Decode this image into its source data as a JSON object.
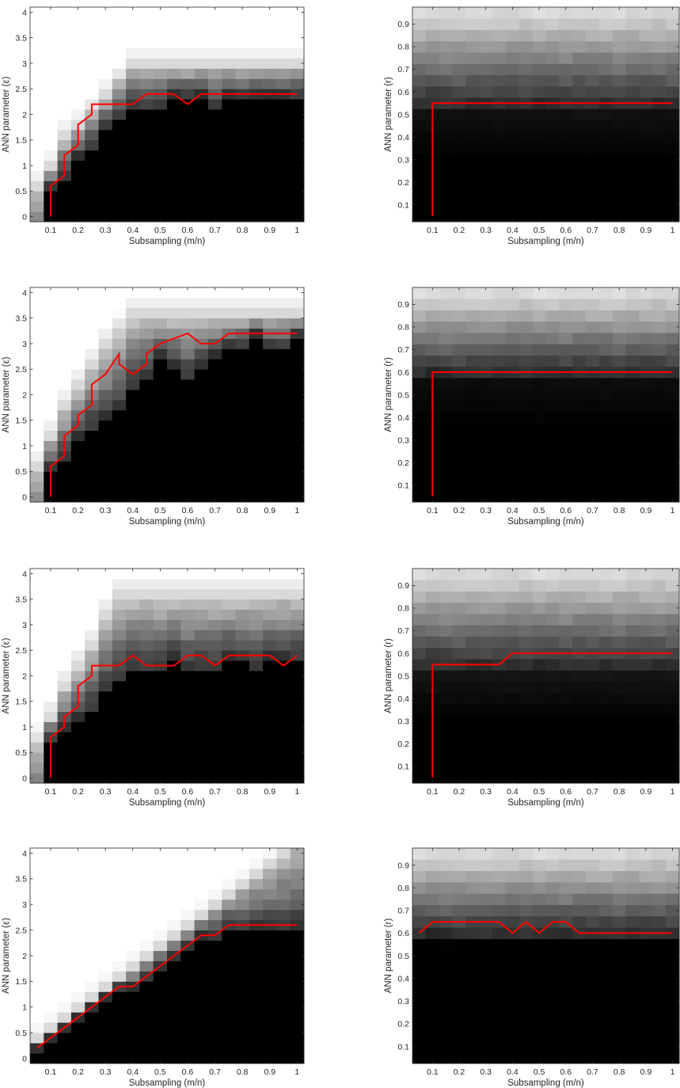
{
  "chart_data": [
    {
      "type": "heatmap",
      "panel": "row1-left",
      "xlabel": "Subsampling (m/n)",
      "ylabel": "ANN parameter (ε)",
      "x_ticks": [
        0.1,
        0.2,
        0.3,
        0.4,
        0.5,
        0.6,
        0.7,
        0.8,
        0.9,
        1
      ],
      "y_ticks": [
        0,
        0.5,
        1,
        1.5,
        2,
        2.5,
        3,
        3.5,
        4
      ],
      "xlim": [
        0.025,
        1.025
      ],
      "ylim": [
        -0.1,
        4.1
      ],
      "colormap": "gray",
      "boundary": {
        "x": [
          0.1,
          0.1,
          0.15,
          0.15,
          0.2,
          0.2,
          0.25,
          0.25,
          0.3,
          0.4,
          0.45,
          0.55,
          0.6,
          0.65,
          1.0
        ],
        "y": [
          0.0,
          0.6,
          0.8,
          1.2,
          1.4,
          1.8,
          2.0,
          2.2,
          2.2,
          2.2,
          2.4,
          2.4,
          2.2,
          2.4,
          2.4
        ]
      },
      "surface": {
        "model": "eps",
        "lower": [
          -1,
          0.6,
          0.8,
          1.2,
          1.4,
          1.8,
          2.0,
          2.2,
          2.2,
          2.2,
          2.4,
          2.4,
          2.4,
          2.2,
          2.4,
          2.4,
          2.4,
          2.4,
          2.4,
          2.4
        ],
        "upper": [
          0.6,
          1.0,
          1.6,
          1.8,
          2.1,
          2.4,
          2.7,
          3.0,
          3.0,
          3.0,
          3.0,
          3.0,
          3.0,
          3.0,
          3.0,
          3.0,
          3.0,
          3.0,
          3.0,
          3.0
        ],
        "band": 0.3,
        "level": 0.58
      }
    },
    {
      "type": "heatmap",
      "panel": "row1-right",
      "xlabel": "Subsampling (m/n)",
      "ylabel": "ANN parameter (r)",
      "x_ticks": [
        0.1,
        0.2,
        0.3,
        0.4,
        0.5,
        0.6,
        0.7,
        0.8,
        0.9,
        1
      ],
      "y_ticks": [
        0.1,
        0.2,
        0.3,
        0.4,
        0.5,
        0.6,
        0.7,
        0.8,
        0.9
      ],
      "xlim": [
        0.025,
        1.025
      ],
      "ylim": [
        0.025,
        0.975
      ],
      "colormap": "gray",
      "boundary": {
        "x": [
          0.1,
          0.1,
          1.0
        ],
        "y": [
          0.05,
          0.55,
          0.55
        ]
      },
      "surface": {
        "model": "r",
        "step": 0.55,
        "low": 0.08,
        "high": 0.85
      }
    },
    {
      "type": "heatmap",
      "panel": "row2-left",
      "xlabel": "Subsampling (m/n)",
      "ylabel": "ANN parameter (ε)",
      "x_ticks": [
        0.1,
        0.2,
        0.3,
        0.4,
        0.5,
        0.6,
        0.7,
        0.8,
        0.9,
        1
      ],
      "y_ticks": [
        0,
        0.5,
        1,
        1.5,
        2,
        2.5,
        3,
        3.5,
        4
      ],
      "xlim": [
        0.025,
        1.025
      ],
      "ylim": [
        -0.1,
        4.1
      ],
      "colormap": "gray",
      "boundary": {
        "x": [
          0.1,
          0.1,
          0.15,
          0.15,
          0.2,
          0.2,
          0.25,
          0.25,
          0.3,
          0.35,
          0.35,
          0.4,
          0.45,
          0.45,
          0.5,
          0.6,
          0.65,
          0.7,
          0.75,
          1.0
        ],
        "y": [
          0.0,
          0.6,
          0.8,
          1.2,
          1.4,
          1.6,
          1.8,
          2.2,
          2.4,
          2.8,
          2.6,
          2.4,
          2.6,
          2.8,
          3.0,
          3.2,
          3.0,
          3.0,
          3.2,
          3.2
        ]
      },
      "surface": {
        "model": "eps",
        "lower": [
          -1,
          0.6,
          0.8,
          1.2,
          1.4,
          1.6,
          1.8,
          2.2,
          2.4,
          2.8,
          2.6,
          2.4,
          2.6,
          2.8,
          3.0,
          3.0,
          3.2,
          3.0,
          3.0,
          3.2
        ],
        "upper": [
          0.6,
          1.2,
          1.8,
          2.2,
          2.6,
          3.0,
          3.3,
          3.6,
          3.6,
          3.6,
          3.6,
          3.6,
          3.6,
          3.6,
          3.6,
          3.6,
          3.6,
          3.6,
          3.6,
          3.6
        ],
        "band": 0.35,
        "level": 0.6
      }
    },
    {
      "type": "heatmap",
      "panel": "row2-right",
      "xlabel": "Subsampling (m/n)",
      "ylabel": "ANN parameter (r)",
      "x_ticks": [
        0.1,
        0.2,
        0.3,
        0.4,
        0.5,
        0.6,
        0.7,
        0.8,
        0.9,
        1
      ],
      "y_ticks": [
        0.1,
        0.2,
        0.3,
        0.4,
        0.5,
        0.6,
        0.7,
        0.8,
        0.9
      ],
      "xlim": [
        0.025,
        1.025
      ],
      "ylim": [
        0.025,
        0.975
      ],
      "colormap": "gray",
      "boundary": {
        "x": [
          0.1,
          0.1,
          1.0
        ],
        "y": [
          0.05,
          0.6,
          0.6
        ]
      },
      "surface": {
        "model": "r",
        "step": 0.6,
        "low": 0.06,
        "high": 0.86
      }
    },
    {
      "type": "heatmap",
      "panel": "row3-left",
      "xlabel": "Subsampling (m/n)",
      "ylabel": "ANN parameter (ε)",
      "x_ticks": [
        0.1,
        0.2,
        0.3,
        0.4,
        0.5,
        0.6,
        0.7,
        0.8,
        0.9,
        1
      ],
      "y_ticks": [
        0,
        0.5,
        1,
        1.5,
        2,
        2.5,
        3,
        3.5,
        4
      ],
      "xlim": [
        0.025,
        1.025
      ],
      "ylim": [
        -0.1,
        4.1
      ],
      "colormap": "gray",
      "boundary": {
        "x": [
          0.1,
          0.1,
          0.15,
          0.15,
          0.2,
          0.2,
          0.25,
          0.25,
          0.3,
          0.35,
          0.4,
          0.45,
          0.5,
          0.55,
          0.6,
          0.65,
          0.7,
          0.75,
          0.8,
          0.9,
          0.95,
          1.0
        ],
        "y": [
          0.0,
          0.8,
          1.0,
          1.2,
          1.4,
          1.8,
          2.0,
          2.2,
          2.2,
          2.2,
          2.4,
          2.2,
          2.2,
          2.2,
          2.4,
          2.4,
          2.2,
          2.4,
          2.4,
          2.4,
          2.2,
          2.4
        ]
      },
      "surface": {
        "model": "eps",
        "lower": [
          -1,
          0.8,
          1.0,
          1.2,
          1.4,
          1.8,
          2.0,
          2.2,
          2.2,
          2.2,
          2.4,
          2.2,
          2.2,
          2.2,
          2.4,
          2.4,
          2.2,
          2.4,
          2.4,
          2.4
        ],
        "upper": [
          0.7,
          1.2,
          1.8,
          2.2,
          2.6,
          3.2,
          3.6,
          3.6,
          3.6,
          3.6,
          3.6,
          3.6,
          3.6,
          3.6,
          3.6,
          3.6,
          3.6,
          3.6,
          3.6,
          3.6
        ],
        "band": 0.4,
        "level": 0.55
      }
    },
    {
      "type": "heatmap",
      "panel": "row3-right",
      "xlabel": "Subsampling (m/n)",
      "ylabel": "ANN parameter (r)",
      "x_ticks": [
        0.1,
        0.2,
        0.3,
        0.4,
        0.5,
        0.6,
        0.7,
        0.8,
        0.9,
        1
      ],
      "y_ticks": [
        0.1,
        0.2,
        0.3,
        0.4,
        0.5,
        0.6,
        0.7,
        0.8,
        0.9
      ],
      "xlim": [
        0.025,
        1.025
      ],
      "ylim": [
        0.025,
        0.975
      ],
      "colormap": "gray",
      "boundary": {
        "x": [
          0.1,
          0.1,
          0.35,
          0.4,
          1.0
        ],
        "y": [
          0.05,
          0.55,
          0.55,
          0.6,
          0.6
        ]
      },
      "surface": {
        "model": "r",
        "step": 0.55,
        "low": 0.1,
        "high": 0.85
      }
    },
    {
      "type": "heatmap",
      "panel": "row4-left",
      "xlabel": "Subsampling (m/n)",
      "ylabel": "ANN parameter (ε)",
      "x_ticks": [
        0.1,
        0.2,
        0.3,
        0.4,
        0.5,
        0.6,
        0.7,
        0.8,
        0.9,
        1
      ],
      "y_ticks": [
        0,
        0.5,
        1,
        1.5,
        2,
        2.5,
        3,
        3.5,
        4
      ],
      "xlim": [
        0.025,
        1.025
      ],
      "ylim": [
        -0.1,
        4.1
      ],
      "colormap": "gray",
      "boundary": {
        "x": [
          0.05,
          0.1,
          0.15,
          0.2,
          0.25,
          0.3,
          0.35,
          0.4,
          0.45,
          0.5,
          0.55,
          0.6,
          0.65,
          0.7,
          0.75,
          1.0
        ],
        "y": [
          0.2,
          0.4,
          0.6,
          0.8,
          1.0,
          1.2,
          1.4,
          1.4,
          1.6,
          1.8,
          2.0,
          2.2,
          2.4,
          2.4,
          2.6,
          2.6
        ]
      },
      "surface": {
        "model": "eps",
        "lower": [
          0.2,
          0.4,
          0.6,
          0.8,
          1.0,
          1.2,
          1.4,
          1.4,
          1.6,
          1.8,
          2.0,
          2.2,
          2.4,
          2.4,
          2.6,
          2.6,
          2.6,
          2.6,
          2.6,
          2.6
        ],
        "upper": [
          0.4,
          0.6,
          0.8,
          1.0,
          1.2,
          1.4,
          1.6,
          1.8,
          2.0,
          2.2,
          2.4,
          2.6,
          2.8,
          3.0,
          3.2,
          3.4,
          3.6,
          3.8,
          4.0,
          4.2
        ],
        "band": 0.25,
        "level": 0.5
      }
    },
    {
      "type": "heatmap",
      "panel": "row4-right",
      "xlabel": "Subsampling (m/n)",
      "ylabel": "ANN parameter (r)",
      "x_ticks": [
        0.1,
        0.2,
        0.3,
        0.4,
        0.5,
        0.6,
        0.7,
        0.8,
        0.9,
        1
      ],
      "y_ticks": [
        0.1,
        0.2,
        0.3,
        0.4,
        0.5,
        0.6,
        0.7,
        0.8,
        0.9
      ],
      "xlim": [
        0.025,
        1.025
      ],
      "ylim": [
        0.025,
        0.975
      ],
      "colormap": "gray",
      "boundary": {
        "x": [
          0.05,
          0.1,
          0.35,
          0.4,
          0.45,
          0.5,
          0.55,
          0.6,
          0.65,
          1.0
        ],
        "y": [
          0.6,
          0.65,
          0.65,
          0.6,
          0.65,
          0.6,
          0.65,
          0.65,
          0.6,
          0.6
        ]
      },
      "surface": {
        "model": "r",
        "step": 0.6,
        "low": 0.0,
        "high": 0.85
      }
    }
  ]
}
